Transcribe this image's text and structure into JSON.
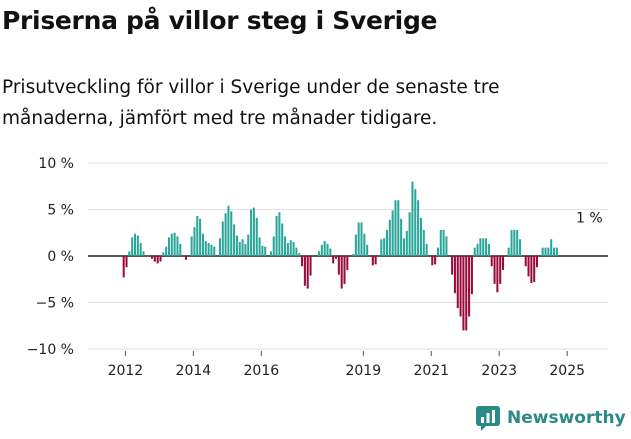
{
  "title": "Priserna på villor steg i Sverige",
  "subtitle": "Prisutveckling för villor i Sverige under de senaste tre månaderna, jämfört med tre månader tidigare.",
  "brand": {
    "name": "Newsworthy"
  },
  "colors": {
    "positive": "#2aa59a",
    "negative": "#9b0a3c",
    "grid": "#e2e2e2",
    "zero": "#222222"
  },
  "chart_data": {
    "type": "bar",
    "title": "Priserna på villor steg i Sverige",
    "ylabel": "",
    "xlabel": "",
    "ylim": [
      -10,
      10
    ],
    "xlim": [
      2010.9,
      2026.2
    ],
    "yticks": [
      -10,
      -5,
      0,
      5,
      10
    ],
    "ytick_labels": [
      "−10 %",
      "−5 %",
      "0 %",
      "5 %",
      "10 %"
    ],
    "xticks": [
      2012,
      2014,
      2016,
      2019,
      2021,
      2023,
      2025
    ],
    "xtick_labels": [
      "2012",
      "2014",
      "2016",
      "2019",
      "2021",
      "2023",
      "2025"
    ],
    "start": 2011.95,
    "step": 0.0833,
    "values": [
      -2.3,
      -1.2,
      0.5,
      2.0,
      2.4,
      2.2,
      1.4,
      0.5,
      0,
      0,
      -0.3,
      -0.6,
      -0.8,
      -0.6,
      0.4,
      1.0,
      2.0,
      2.4,
      2.5,
      2.1,
      1.3,
      0,
      -0.4,
      0,
      2.1,
      3.1,
      4.3,
      4.0,
      2.4,
      1.6,
      1.4,
      1.2,
      1.0,
      0,
      1.9,
      3.7,
      4.6,
      5.4,
      4.8,
      3.4,
      2.2,
      1.5,
      1.8,
      1.3,
      2.3,
      5.0,
      5.2,
      4.1,
      2.0,
      1.1,
      1.0,
      0,
      0.5,
      2.1,
      4.3,
      4.7,
      3.5,
      2.1,
      1.4,
      1.7,
      1.5,
      0.9,
      0.3,
      -1.1,
      -3.2,
      -3.5,
      -2.1,
      0,
      0,
      0.5,
      1.2,
      1.6,
      1.3,
      0.8,
      -0.8,
      -0.3,
      -2.0,
      -3.5,
      -3.0,
      -1.5,
      0,
      0.2,
      2.3,
      3.6,
      3.6,
      2.4,
      1.2,
      0,
      -1.0,
      -0.9,
      0,
      1.8,
      1.9,
      2.8,
      3.9,
      4.9,
      6.0,
      6.0,
      4.0,
      1.9,
      2.7,
      4.7,
      8.0,
      7.2,
      6.0,
      4.1,
      2.8,
      1.3,
      0,
      -1.0,
      -0.9,
      0.9,
      2.8,
      2.8,
      2.1,
      0,
      -2.0,
      -4.0,
      -5.6,
      -6.5,
      -8.0,
      -8.0,
      -6.5,
      -4.1,
      0.9,
      1.3,
      1.9,
      1.9,
      1.9,
      1.3,
      -1.1,
      -3.0,
      -3.9,
      -3.0,
      -1.5,
      0,
      0.9,
      2.8,
      2.8,
      2.8,
      1.8,
      0,
      -1.1,
      -2.2,
      -2.9,
      -2.8,
      -1.2,
      0,
      0.9,
      0.9,
      0.9,
      1.8,
      0.9,
      0.9
    ],
    "annotations": [
      {
        "label": "1 %",
        "x": 2025.65,
        "y": 1.0
      }
    ]
  }
}
